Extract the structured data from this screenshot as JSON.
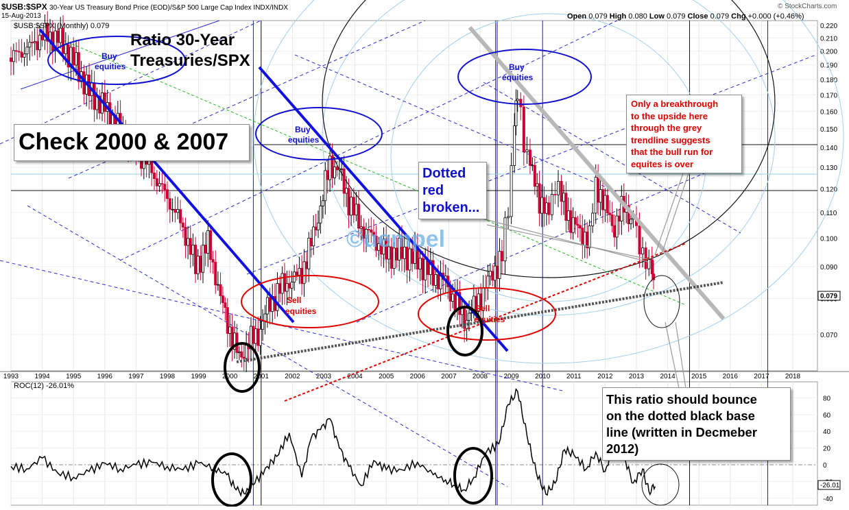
{
  "header": {
    "ticker": "$USB:$SPX",
    "description": "30-Year US Treasury Bond Price (EOD)/S&P 500 Large Cap Index  INDX/INDX",
    "date": "15-Aug-2013",
    "source": "© StockCharts.com",
    "quote": {
      "open_label": "Open",
      "open": "0.079",
      "high_label": "High",
      "high": "0.080",
      "low_label": "Low",
      "low": "0.079",
      "close_label": "Close",
      "close": "0.079",
      "chg_label": "Chg",
      "chg": "+0.000 (+0.46%)"
    }
  },
  "overlay_text": {
    "title": "Ratio 30-Year Treasuries/SPX",
    "title_line1": "Ratio 30-Year",
    "title_line2": "Treasuries/SPX",
    "check": "Check 2000 & 2007",
    "dotted_red": "Dotted red broken...",
    "dotted_red_lines": [
      "Dotted",
      "red",
      "broken..."
    ],
    "breakthrough_lines": [
      "Only a breakthrough",
      "to the upside here",
      "through the grey",
      "trendline suggests",
      "that the bull run for",
      "equites is over"
    ],
    "bounce_lines": [
      "This ratio should bounce",
      "on the dotted black base",
      "line (written in Decmeber",
      "2012)"
    ],
    "watermark": "©uempel",
    "buy_label_1": "Buy equities",
    "buy_label_2": "Buy equities",
    "buy_label_3": "Buy equities",
    "sell_label_1": "Sell equities",
    "sell_label_2": "Sell equities",
    "buy_word": "Buy",
    "sell_word": "Sell",
    "equities_word": "equities"
  },
  "chart_data": [
    {
      "type": "candlestick",
      "title": "$USB:$SPX (Monthly) 0.079",
      "legend": "$USB:$SPX (Monthly) 0.079",
      "ylim": [
        0.06,
        0.22
      ],
      "y_scale": "log",
      "y_ticks": [
        0.07,
        0.08,
        0.09,
        0.1,
        0.11,
        0.12,
        0.13,
        0.14,
        0.15,
        0.16,
        0.17,
        0.18,
        0.19,
        0.2,
        0.21,
        0.22
      ],
      "x_ticks": [
        "1993",
        "1994",
        "1995",
        "1996",
        "1997",
        "1998",
        "1999",
        "2000",
        "2001",
        "2002",
        "2003",
        "2004",
        "2005",
        "2006",
        "2007",
        "2008",
        "2009",
        "2010",
        "2011",
        "2012",
        "2013",
        "2014",
        "2015",
        "2016",
        "2017",
        "2018"
      ],
      "last_value": "0.079",
      "approx_path": [
        [
          1993.0,
          0.195
        ],
        [
          1993.6,
          0.203
        ],
        [
          1994.0,
          0.212
        ],
        [
          1994.5,
          0.21
        ],
        [
          1995.0,
          0.193
        ],
        [
          1995.5,
          0.172
        ],
        [
          1996.0,
          0.162
        ],
        [
          1996.5,
          0.15
        ],
        [
          1997.0,
          0.137
        ],
        [
          1997.5,
          0.128
        ],
        [
          1998.0,
          0.116
        ],
        [
          1998.5,
          0.104
        ],
        [
          1998.9,
          0.09
        ],
        [
          1999.3,
          0.098
        ],
        [
          1999.7,
          0.08
        ],
        [
          2000.0,
          0.071
        ],
        [
          2000.3,
          0.064
        ],
        [
          2000.6,
          0.068
        ],
        [
          2000.9,
          0.07
        ],
        [
          2001.2,
          0.077
        ],
        [
          2001.6,
          0.083
        ],
        [
          2001.9,
          0.085
        ],
        [
          2002.3,
          0.088
        ],
        [
          2002.6,
          0.098
        ],
        [
          2002.9,
          0.112
        ],
        [
          2003.2,
          0.132
        ],
        [
          2003.5,
          0.128
        ],
        [
          2003.8,
          0.115
        ],
        [
          2004.2,
          0.104
        ],
        [
          2004.6,
          0.1
        ],
        [
          2005.0,
          0.094
        ],
        [
          2005.5,
          0.095
        ],
        [
          2006.0,
          0.092
        ],
        [
          2006.5,
          0.087
        ],
        [
          2006.9,
          0.085
        ],
        [
          2007.2,
          0.079
        ],
        [
          2007.5,
          0.074
        ],
        [
          2007.8,
          0.077
        ],
        [
          2008.1,
          0.082
        ],
        [
          2008.4,
          0.088
        ],
        [
          2008.7,
          0.093
        ],
        [
          2008.9,
          0.113
        ],
        [
          2009.1,
          0.15
        ],
        [
          2009.2,
          0.168
        ],
        [
          2009.4,
          0.145
        ],
        [
          2009.6,
          0.13
        ],
        [
          2009.9,
          0.116
        ],
        [
          2010.2,
          0.108
        ],
        [
          2010.4,
          0.124
        ],
        [
          2010.6,
          0.115
        ],
        [
          2010.9,
          0.107
        ],
        [
          2011.2,
          0.102
        ],
        [
          2011.5,
          0.1
        ],
        [
          2011.7,
          0.123
        ],
        [
          2012.0,
          0.112
        ],
        [
          2012.3,
          0.104
        ],
        [
          2012.6,
          0.113
        ],
        [
          2012.9,
          0.106
        ],
        [
          2013.1,
          0.097
        ],
        [
          2013.3,
          0.093
        ],
        [
          2013.5,
          0.086
        ],
        [
          2013.6,
          0.079
        ]
      ]
    },
    {
      "type": "line",
      "title": "ROC(12) -26.01%",
      "legend": "ROC(12) -26.01%",
      "ylim": [
        -45,
        95
      ],
      "y_ticks": [
        -40,
        -20,
        0,
        20,
        40,
        60,
        80
      ],
      "last_value": "-26.01",
      "x": [
        1993.0,
        1993.5,
        1994.0,
        1994.5,
        1995.0,
        1995.5,
        1996.0,
        1996.5,
        1997.0,
        1997.5,
        1998.0,
        1998.5,
        1999.0,
        1999.5,
        1999.9,
        2000.2,
        2000.5,
        2000.8,
        2001.2,
        2001.5,
        2001.9,
        2002.3,
        2002.6,
        2002.9,
        2003.2,
        2003.5,
        2003.8,
        2004.2,
        2004.6,
        2005.0,
        2005.5,
        2006.0,
        2006.5,
        2006.9,
        2007.2,
        2007.5,
        2007.8,
        2008.2,
        2008.6,
        2008.9,
        2009.2,
        2009.5,
        2009.8,
        2010.1,
        2010.4,
        2010.7,
        2011.0,
        2011.4,
        2011.7,
        2012.0,
        2012.3,
        2012.6,
        2012.9,
        2013.2,
        2013.4,
        2013.6
      ],
      "values": [
        -2,
        -5,
        8,
        -10,
        -15,
        -8,
        2,
        -5,
        0,
        3,
        -2,
        -6,
        2,
        -4,
        -12,
        -30,
        -35,
        -22,
        -2,
        10,
        38,
        -15,
        32,
        42,
        55,
        20,
        -2,
        -25,
        5,
        -6,
        -6,
        3,
        -12,
        -18,
        -25,
        -30,
        -15,
        15,
        25,
        72,
        88,
        35,
        -10,
        -35,
        -22,
        18,
        12,
        -5,
        15,
        -8,
        28,
        10,
        -22,
        -5,
        -32,
        -26
      ]
    }
  ]
}
